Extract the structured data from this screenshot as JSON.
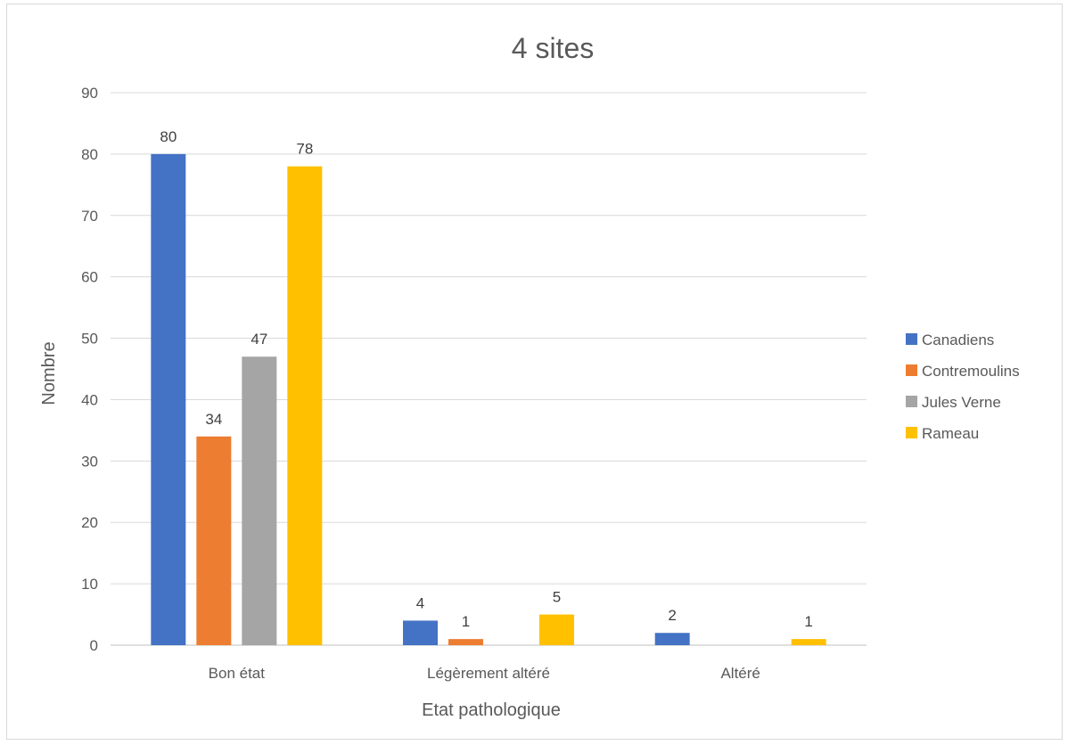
{
  "chart_data": {
    "type": "bar",
    "title": "4 sites",
    "xlabel": "Etat pathologique",
    "ylabel": "Nombre",
    "categories": [
      "Bon état",
      "Légèrement altéré",
      "Altéré"
    ],
    "series": [
      {
        "name": "Canadiens",
        "color": "#4472C4",
        "values": [
          80,
          4,
          2
        ]
      },
      {
        "name": "Contremoulins",
        "color": "#ED7D31",
        "values": [
          34,
          1,
          null
        ]
      },
      {
        "name": "Jules Verne",
        "color": "#A5A5A5",
        "values": [
          47,
          null,
          null
        ]
      },
      {
        "name": "Rameau",
        "color": "#FFC000",
        "values": [
          78,
          5,
          1
        ]
      }
    ],
    "ylim": [
      0,
      90
    ],
    "yticks": [
      0,
      10,
      20,
      30,
      40,
      50,
      60,
      70,
      80,
      90
    ],
    "grid": true,
    "legend": "right",
    "data_labels": true
  }
}
